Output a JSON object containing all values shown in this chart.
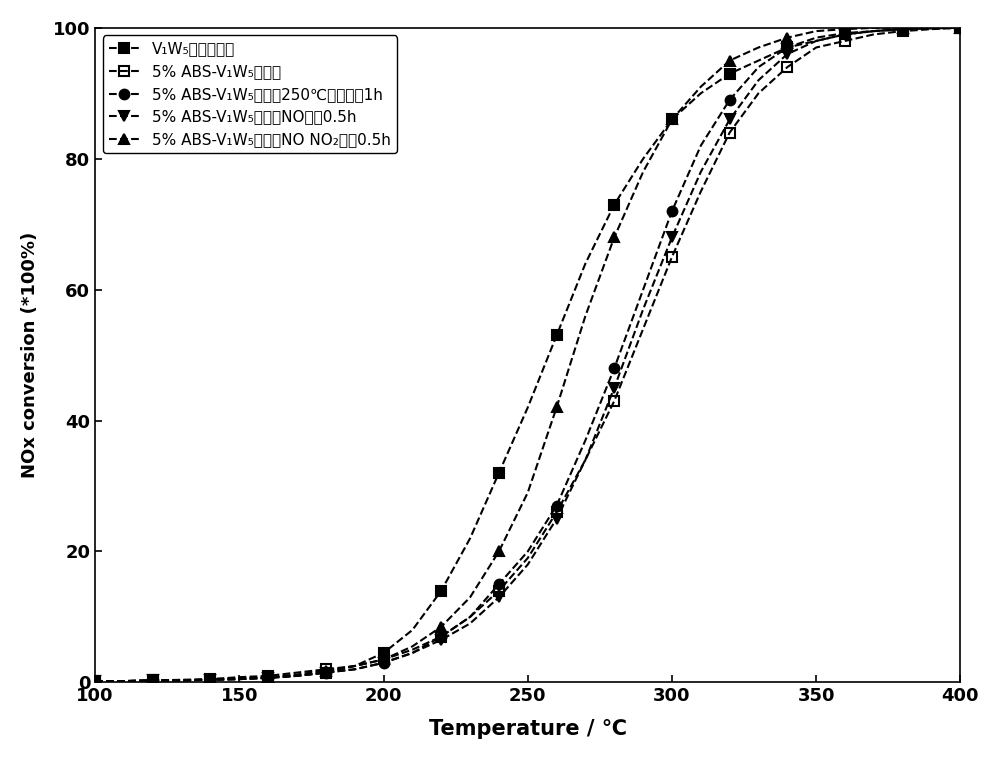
{
  "title": "",
  "xlabel": "Temperature / ℃",
  "ylabel": "NOx conversion (*100%)",
  "xlim": [
    100,
    400
  ],
  "ylim": [
    0,
    100
  ],
  "xticks": [
    100,
    150,
    200,
    250,
    300,
    350,
    400
  ],
  "yticks": [
    0,
    20,
    40,
    60,
    80,
    100
  ],
  "series": [
    {
      "label": "V₁W₅原始催化剂",
      "color": "black",
      "marker": "s",
      "fillstyle": "full",
      "linestyle": "--",
      "x": [
        100,
        110,
        120,
        130,
        140,
        150,
        160,
        170,
        180,
        190,
        200,
        210,
        220,
        230,
        240,
        250,
        260,
        270,
        280,
        290,
        300,
        310,
        320,
        330,
        340,
        350,
        360,
        370,
        380,
        390,
        400
      ],
      "y": [
        0.2,
        0.2,
        0.3,
        0.3,
        0.4,
        0.5,
        0.7,
        1.0,
        1.5,
        2.5,
        4.5,
        8,
        14,
        22,
        32,
        42,
        53,
        64,
        73,
        80,
        86,
        90,
        93,
        95,
        97,
        98,
        99,
        99.5,
        99.8,
        99.9,
        100
      ]
    },
    {
      "label": "5% ABS-V₁W₅催化剂",
      "color": "black",
      "marker": "s",
      "fillstyle": "none",
      "linestyle": "--",
      "x": [
        100,
        110,
        120,
        130,
        140,
        150,
        160,
        170,
        180,
        190,
        200,
        210,
        220,
        230,
        240,
        250,
        260,
        270,
        280,
        290,
        300,
        310,
        320,
        330,
        340,
        350,
        360,
        370,
        380,
        390,
        400
      ],
      "y": [
        0.2,
        0.2,
        0.3,
        0.4,
        0.5,
        0.8,
        1.0,
        1.5,
        2.0,
        2.5,
        3.5,
        5,
        7,
        10,
        14,
        19,
        26,
        34,
        43,
        54,
        65,
        75,
        84,
        90,
        94,
        97,
        98,
        99,
        99.5,
        99.8,
        100
      ]
    },
    {
      "label": "5% ABS-V₁W₅催化剂250℃加热处皆1h",
      "color": "black",
      "marker": "o",
      "fillstyle": "full",
      "linestyle": "--",
      "x": [
        100,
        110,
        120,
        130,
        140,
        150,
        160,
        170,
        180,
        190,
        200,
        210,
        220,
        230,
        240,
        250,
        260,
        270,
        280,
        290,
        300,
        310,
        320,
        330,
        340,
        350,
        360,
        370,
        380,
        390,
        400
      ],
      "y": [
        0.2,
        0.2,
        0.3,
        0.3,
        0.4,
        0.5,
        0.7,
        1.0,
        1.5,
        2.0,
        3.0,
        4.5,
        7,
        10,
        15,
        20,
        27,
        37,
        48,
        60,
        72,
        82,
        89,
        94,
        97,
        98.5,
        99.2,
        99.5,
        99.8,
        100,
        100
      ]
    },
    {
      "label": "5% ABS-V₁W₅催化剂NO处理0.5h",
      "color": "black",
      "marker": "v",
      "fillstyle": "full",
      "linestyle": "--",
      "x": [
        100,
        110,
        120,
        130,
        140,
        150,
        160,
        170,
        180,
        190,
        200,
        210,
        220,
        230,
        240,
        250,
        260,
        270,
        280,
        290,
        300,
        310,
        320,
        330,
        340,
        350,
        360,
        370,
        380,
        390,
        400
      ],
      "y": [
        0.2,
        0.2,
        0.3,
        0.3,
        0.4,
        0.5,
        0.7,
        1.0,
        1.5,
        2.0,
        3.0,
        4.5,
        6.5,
        9,
        13,
        18,
        25,
        34,
        45,
        57,
        68,
        78,
        86,
        92,
        96,
        98,
        99,
        99.5,
        99.8,
        100,
        100
      ]
    },
    {
      "label": "5% ABS-V₁W₅催化剂NO NO₂处理0.5h",
      "color": "black",
      "marker": "^",
      "fillstyle": "full",
      "linestyle": "--",
      "x": [
        100,
        110,
        120,
        130,
        140,
        150,
        160,
        170,
        180,
        190,
        200,
        210,
        220,
        230,
        240,
        250,
        260,
        270,
        280,
        290,
        300,
        310,
        320,
        330,
        340,
        350,
        360,
        370,
        380,
        390,
        400
      ],
      "y": [
        0.2,
        0.2,
        0.3,
        0.3,
        0.5,
        0.6,
        0.8,
        1.2,
        1.8,
        2.5,
        3.5,
        5.5,
        8.5,
        13,
        20,
        29,
        42,
        56,
        68,
        78,
        86,
        91,
        95,
        97,
        98.5,
        99.5,
        99.8,
        100,
        100,
        100,
        100
      ]
    }
  ]
}
